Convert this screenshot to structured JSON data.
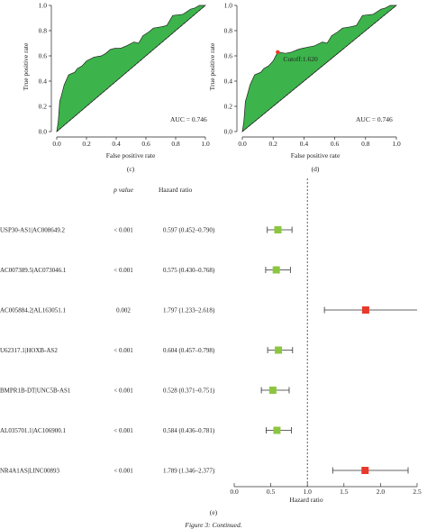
{
  "chart_data": [
    {
      "panel_label": "(c)",
      "type": "area",
      "xlabel": "False positive rate",
      "ylabel": "True positive rate",
      "xticks": [
        "0.0",
        "0.2",
        "0.4",
        "0.6",
        "0.8",
        "1.0"
      ],
      "yticks": [
        "0.0",
        "0.2",
        "0.4",
        "0.6",
        "0.8",
        "1.0"
      ],
      "xlim": [
        0,
        1
      ],
      "ylim": [
        0,
        1
      ],
      "annotation": "AUC = 0.746",
      "fill_color": "#3cb44b",
      "x": [
        0,
        0.01,
        0.02,
        0.03,
        0.05,
        0.08,
        0.12,
        0.14,
        0.17,
        0.2,
        0.25,
        0.3,
        0.33,
        0.36,
        0.39,
        0.43,
        0.47,
        0.52,
        0.55,
        0.58,
        0.62,
        0.65,
        0.7,
        0.74,
        0.78,
        0.85,
        0.9,
        0.93,
        0.96,
        1.0
      ],
      "y": [
        0,
        0.08,
        0.24,
        0.28,
        0.37,
        0.45,
        0.47,
        0.5,
        0.52,
        0.56,
        0.59,
        0.6,
        0.62,
        0.65,
        0.66,
        0.66,
        0.68,
        0.71,
        0.7,
        0.76,
        0.79,
        0.82,
        0.83,
        0.84,
        0.92,
        0.93,
        0.97,
        0.98,
        1.0,
        1.0
      ]
    },
    {
      "panel_label": "(d)",
      "type": "area",
      "xlabel": "False positive rate",
      "ylabel": "True positive rate",
      "xticks": [
        "0.0",
        "0.2",
        "0.4",
        "0.6",
        "0.8",
        "1.0"
      ],
      "yticks": [
        "0.0",
        "0.2",
        "0.4",
        "0.6",
        "0.8",
        "1.0"
      ],
      "xlim": [
        0,
        1
      ],
      "ylim": [
        0,
        1
      ],
      "annotation": "AUC = 0.746",
      "cutoff_label": "Cutoff:1.620",
      "cutoff_point": [
        0.23,
        0.63
      ],
      "fill_color": "#3cb44b",
      "cutoff_color": "#e8392b",
      "x": [
        0,
        0.01,
        0.02,
        0.03,
        0.05,
        0.08,
        0.12,
        0.14,
        0.17,
        0.2,
        0.23,
        0.28,
        0.32,
        0.36,
        0.39,
        0.43,
        0.47,
        0.52,
        0.55,
        0.58,
        0.62,
        0.65,
        0.7,
        0.74,
        0.78,
        0.85,
        0.9,
        0.93,
        0.96,
        1.0
      ],
      "y": [
        0,
        0.08,
        0.24,
        0.28,
        0.37,
        0.45,
        0.47,
        0.5,
        0.52,
        0.56,
        0.63,
        0.62,
        0.63,
        0.65,
        0.66,
        0.67,
        0.68,
        0.71,
        0.7,
        0.76,
        0.79,
        0.82,
        0.83,
        0.84,
        0.92,
        0.93,
        0.97,
        0.98,
        1.0,
        1.0
      ]
    },
    {
      "panel_label": "(e)",
      "type": "scatter",
      "subtype": "forest",
      "col_headers": {
        "pvalue": "p value",
        "hr": "Hazard ratio"
      },
      "xlabel": "Hazard ratio",
      "xticks": [
        "0.0",
        "0.5",
        "1.0",
        "1.5",
        "2.0",
        "2.5"
      ],
      "xlim": [
        0,
        2.5
      ],
      "reference_line": 1.0,
      "protective_color": "#8cc63f",
      "risk_color": "#e8392b",
      "rows": [
        {
          "gene": "USP30-AS1|AC008649.2",
          "p": "< 0.001",
          "hr_text": "0.597 (0.452–0.790)",
          "hr": 0.597,
          "lo": 0.452,
          "hi": 0.79
        },
        {
          "gene": "AC007389.5|AC073046.1",
          "p": "< 0.001",
          "hr_text": "0.575 (0.430–0.768)",
          "hr": 0.575,
          "lo": 0.43,
          "hi": 0.768
        },
        {
          "gene": "AC005884.2|AL163051.1",
          "p": "0.002",
          "hr_text": "1.797 (1.233–2.618)",
          "hr": 1.797,
          "lo": 1.233,
          "hi": 2.618
        },
        {
          "gene": "U62317.1|HOXB-AS2",
          "p": "< 0.001",
          "hr_text": "0.604 (0.457–0.798)",
          "hr": 0.604,
          "lo": 0.457,
          "hi": 0.798
        },
        {
          "gene": "BMPR1B-DT|UNC5B-AS1",
          "p": "< 0.001",
          "hr_text": "0.528 (0.371–0.751)",
          "hr": 0.528,
          "lo": 0.371,
          "hi": 0.751
        },
        {
          "gene": "AL035701.1|AC106900.1",
          "p": "< 0.001",
          "hr_text": "0.584 (0.436–0.781)",
          "hr": 0.584,
          "lo": 0.436,
          "hi": 0.781
        },
        {
          "gene": "NR4A1AS|LINC00893",
          "p": "< 0.001",
          "hr_text": "1.789 (1.346–2.377)",
          "hr": 1.789,
          "lo": 1.346,
          "hi": 2.377
        }
      ]
    }
  ],
  "caption": "Figure 3: Continued."
}
